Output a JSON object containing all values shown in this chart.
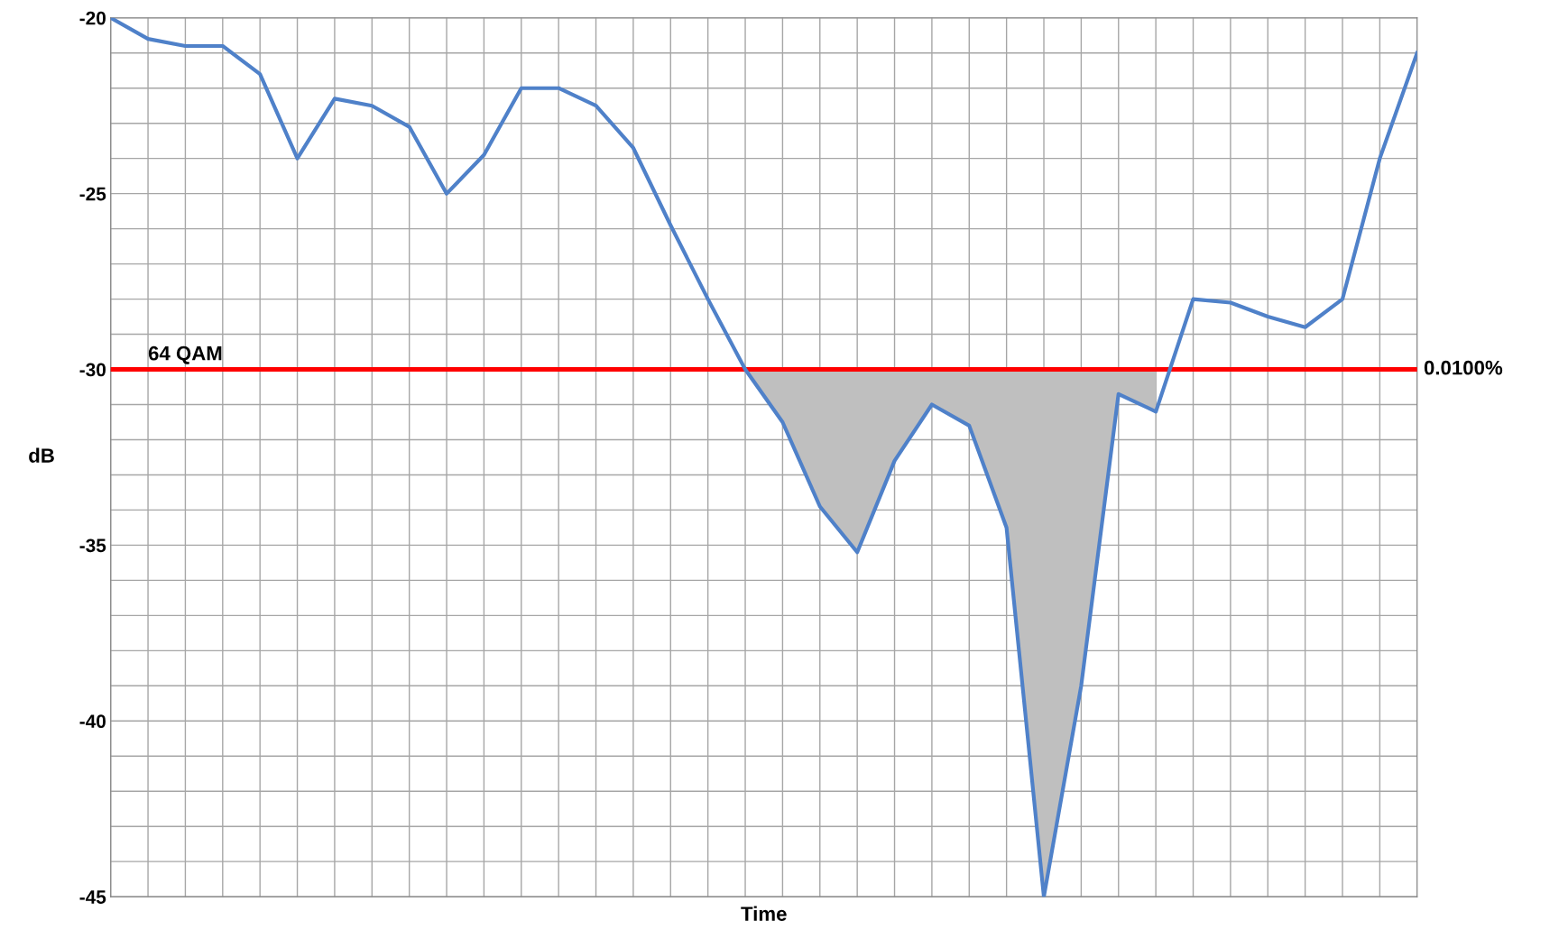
{
  "chart_data": {
    "type": "line",
    "xlabel": "Time",
    "ylabel": "dB",
    "categories": [
      null,
      null,
      null,
      null,
      null,
      null,
      null,
      null,
      null,
      null,
      null,
      null,
      null,
      null,
      null,
      null,
      null,
      null,
      null,
      null,
      null,
      null,
      null,
      null,
      null,
      null,
      null,
      null,
      null,
      null,
      null,
      null,
      null,
      null,
      null,
      null
    ],
    "ylim": [
      -45,
      -20
    ],
    "yticks": [
      -45,
      {
        "value": -44,
        "label": null
      },
      {
        "value": -43,
        "label": null
      },
      {
        "value": -42,
        "label": null
      },
      {
        "value": -41,
        "label": null
      },
      -40,
      {
        "value": -39,
        "label": null
      },
      {
        "value": -38,
        "label": null
      },
      {
        "value": -37,
        "label": null
      },
      {
        "value": -36,
        "label": null
      },
      -35,
      {
        "value": -34,
        "label": null
      },
      {
        "value": -33,
        "label": null
      },
      {
        "value": -32,
        "label": null
      },
      {
        "value": -31,
        "label": null
      },
      -30,
      {
        "value": -29,
        "label": null
      },
      {
        "value": -28,
        "label": null
      },
      {
        "value": -27,
        "label": null
      },
      {
        "value": -26,
        "label": null
      },
      -25,
      {
        "value": -24,
        "label": null
      },
      {
        "value": -23,
        "label": null
      },
      {
        "value": -22,
        "label": null
      },
      {
        "value": -21,
        "label": null
      },
      -20
    ],
    "grid": true,
    "legend": false,
    "marker": "none",
    "line_style": "solid",
    "series": [
      {
        "color": "#4f81c9",
        "values": [
          -20.0,
          -20.6,
          -20.8,
          -20.8,
          -21.6,
          -24.0,
          -22.3,
          -22.5,
          -23.1,
          -25.0,
          -23.9,
          -22.0,
          -22.0,
          -22.5,
          -23.7,
          -25.9,
          -28.0,
          -30.0,
          -31.5,
          -33.9,
          -35.2,
          -32.6,
          -31.0,
          -31.6,
          -34.5,
          -45.0,
          -39.0,
          -30.7,
          -31.2,
          -28.0,
          -28.1,
          -28.5,
          -28.8,
          -28.0,
          -24.0,
          -21.0
        ],
        "lower": [
          null,
          null,
          null,
          null,
          null,
          null,
          null,
          null,
          null,
          null,
          null,
          null,
          null,
          null,
          null,
          null,
          null,
          -30.0,
          -31.5,
          -33.9,
          -35.2,
          -32.6,
          -31.0,
          -31.6,
          -34.5,
          -45.0,
          -39.0,
          -30.7,
          -31.2,
          null,
          null,
          null,
          null,
          null,
          null,
          null
        ],
        "upper": [
          null,
          null,
          null,
          null,
          null,
          null,
          null,
          null,
          null,
          null,
          null,
          null,
          null,
          null,
          null,
          null,
          null,
          -30,
          -30,
          -30,
          -30,
          -30,
          -30,
          -30,
          -30,
          -30,
          -30,
          -30,
          -30,
          null,
          null,
          null,
          null,
          null,
          null,
          null
        ]
      }
    ],
    "ref_lines": [
      {
        "axis": "y",
        "value": -30,
        "label": "64 QAM",
        "color": "#ff0000",
        "line_style": "solid"
      }
    ],
    "annotations": [
      "0.0100%"
    ]
  }
}
